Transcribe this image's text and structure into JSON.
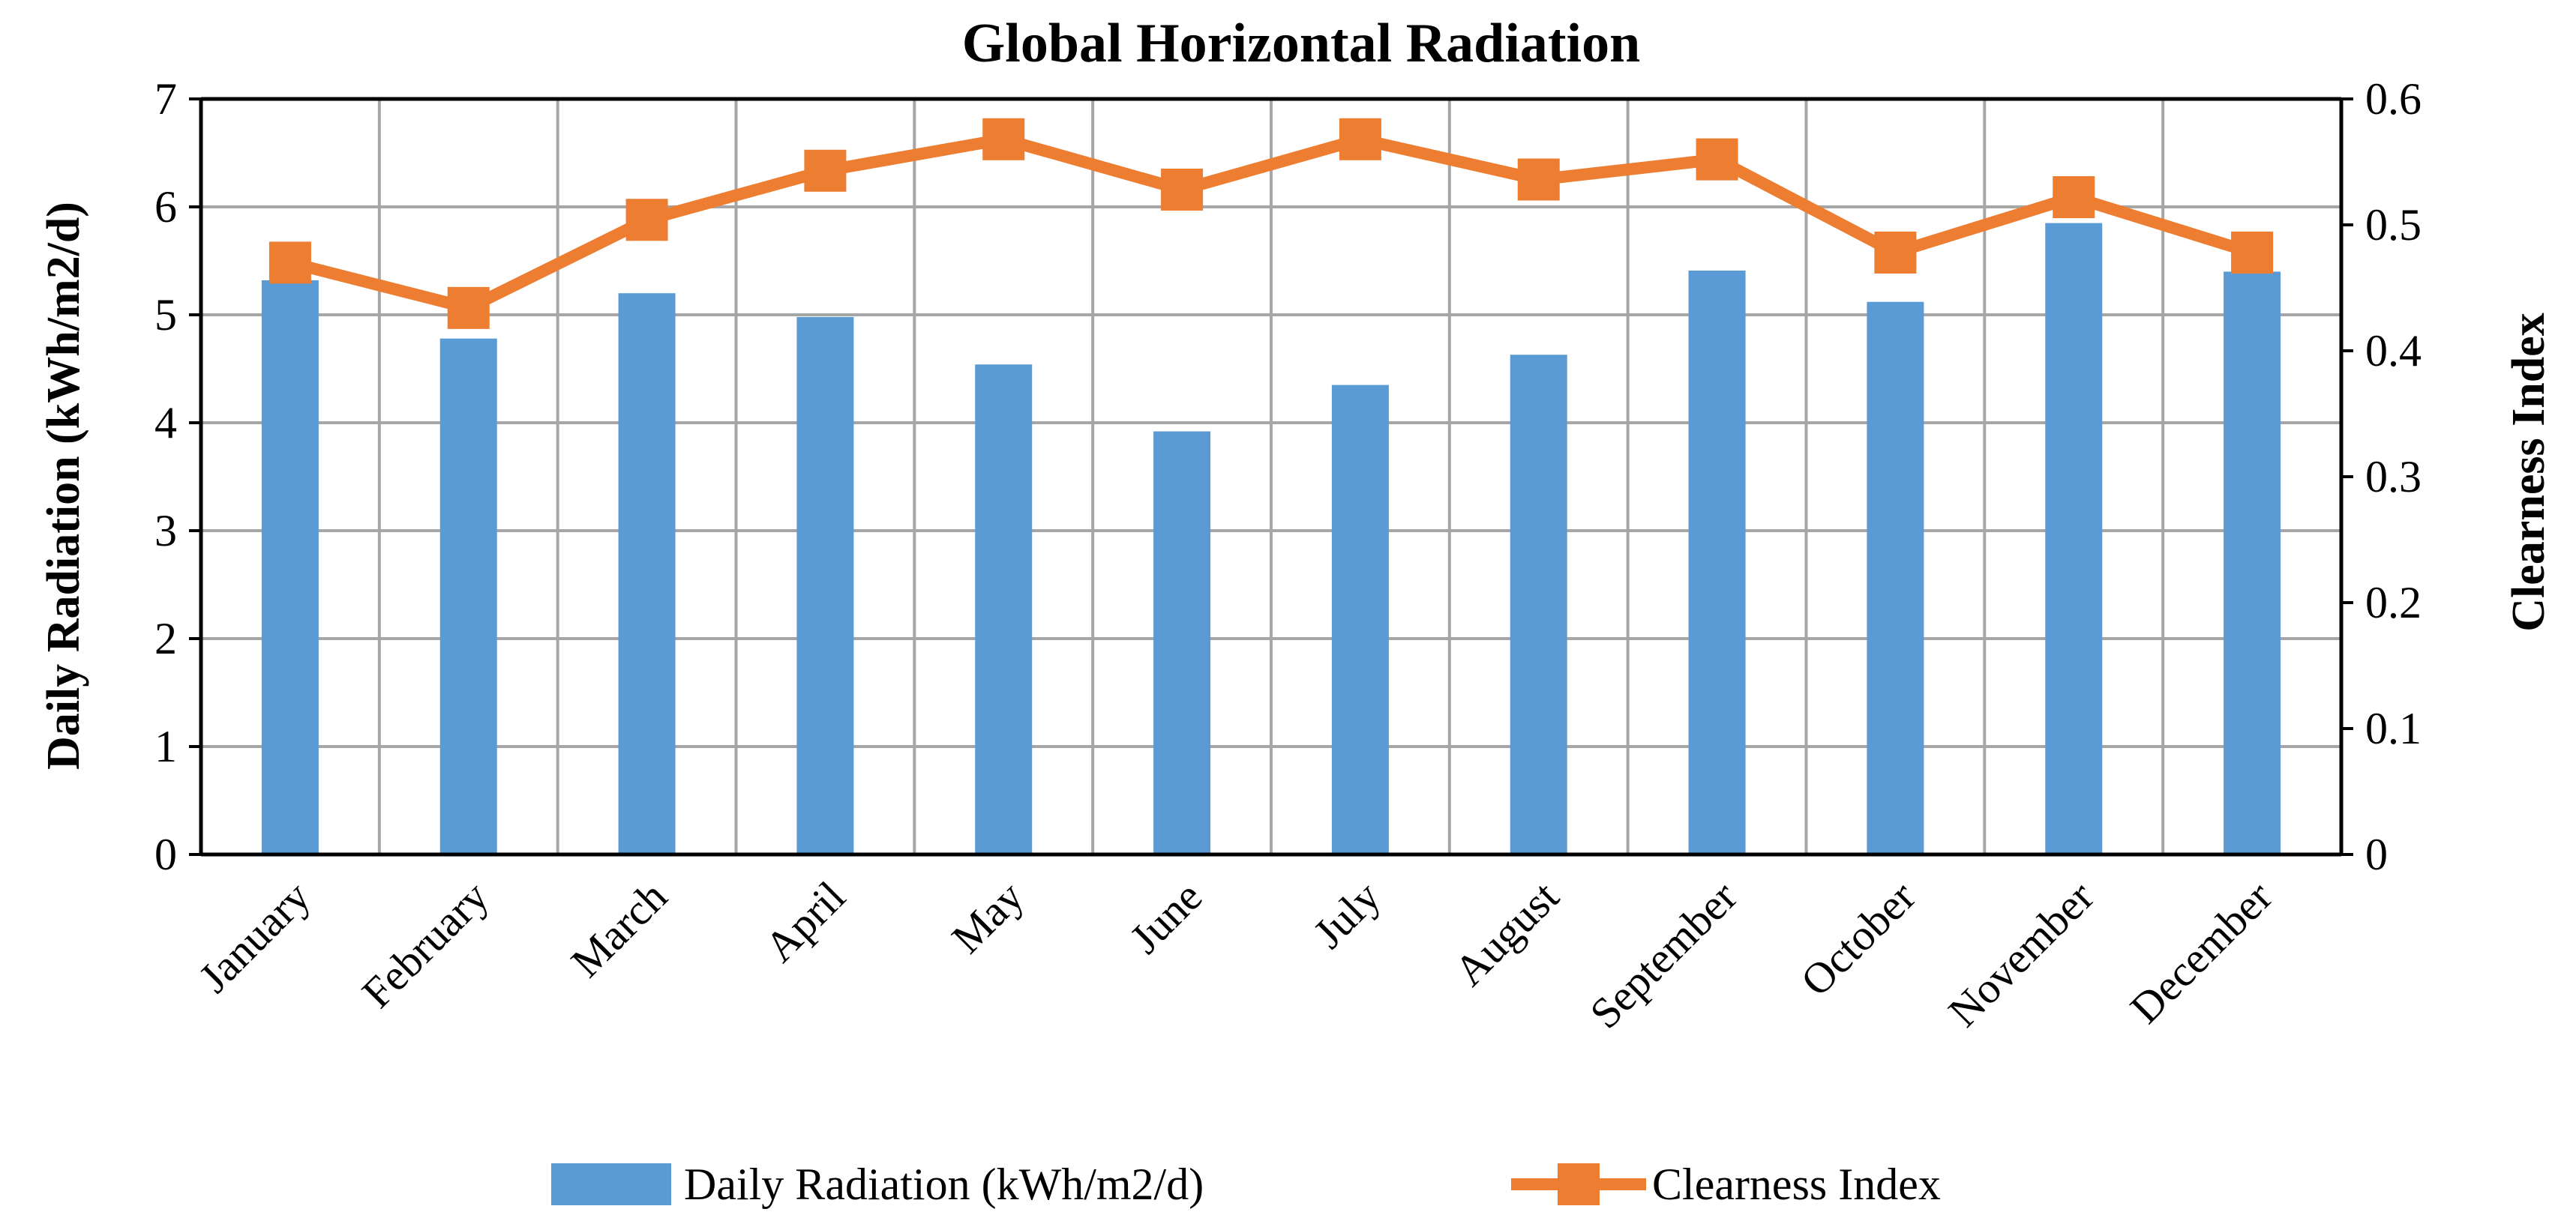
{
  "chart_data": {
    "type": "bar",
    "title": "Global Horizontal Radiation",
    "categories": [
      "January",
      "February",
      "March",
      "April",
      "May",
      "June",
      "July",
      "August",
      "September",
      "October",
      "November",
      "December"
    ],
    "series": [
      {
        "name": "Daily Radiation (kWh/m2/d)",
        "type": "bar",
        "axis": "left",
        "color": "#5b9bd5",
        "values": [
          5.32,
          4.78,
          5.2,
          4.98,
          4.54,
          3.92,
          4.35,
          4.63,
          5.41,
          5.12,
          5.85,
          5.4
        ]
      },
      {
        "name": "Clearness Index",
        "type": "line",
        "axis": "right",
        "color": "#ed7d31",
        "marker": "square",
        "values": [
          0.47,
          0.434,
          0.504,
          0.543,
          0.568,
          0.528,
          0.568,
          0.536,
          0.552,
          0.478,
          0.522,
          0.478
        ]
      }
    ],
    "ylabel": "Daily Radiation (kWh/m2/d)",
    "ylim": [
      0,
      7
    ],
    "yticks": [
      "0",
      "1",
      "2",
      "3",
      "4",
      "5",
      "6",
      "7"
    ],
    "y2label": "Clearness Index",
    "y2lim": [
      0,
      0.6
    ],
    "y2ticks": [
      "0",
      "0.1",
      "0.2",
      "0.3",
      "0.4",
      "0.5",
      "0.6"
    ],
    "grid": true,
    "legend_position": "bottom"
  }
}
